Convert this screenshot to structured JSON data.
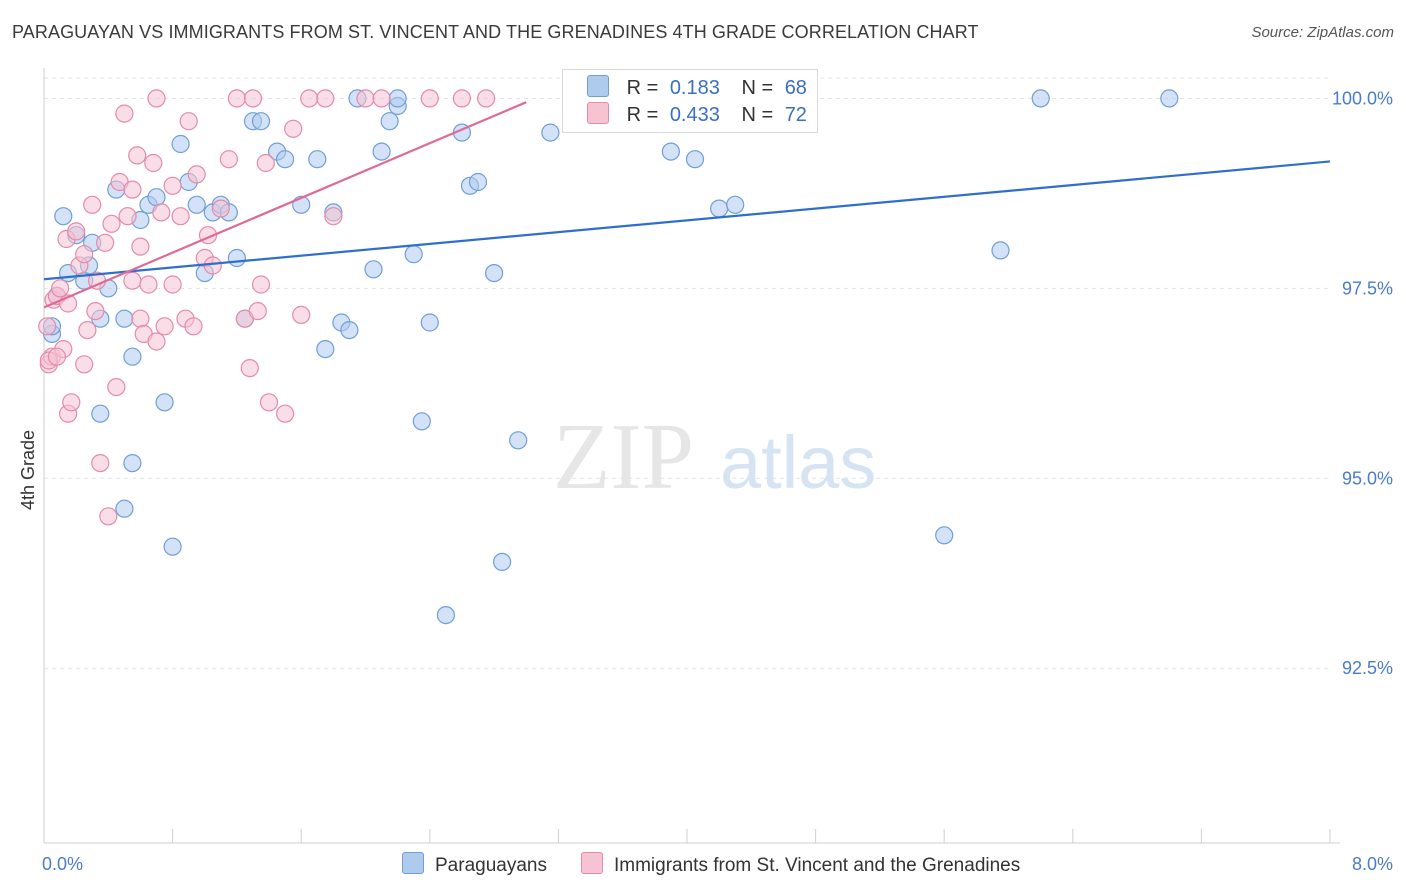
{
  "header": {
    "title": "PARAGUAYAN VS IMMIGRANTS FROM ST. VINCENT AND THE GRENADINES 4TH GRADE CORRELATION CHART",
    "source": "Source: ZipAtlas.com"
  },
  "watermark": {
    "zip": "ZIP",
    "atlas": "atlas"
  },
  "legend": {
    "rows": [
      {
        "r_label": "R =",
        "r_value": "0.183",
        "n_label": "N =",
        "n_value": "68"
      },
      {
        "r_label": "R =",
        "r_value": "0.433",
        "n_label": "N =",
        "n_value": "72"
      }
    ]
  },
  "bottom_legend": {
    "items": [
      {
        "label": "Paraguayans"
      },
      {
        "label": "Immigrants from St. Vincent and the Grenadines"
      }
    ]
  },
  "colors": {
    "blue_fill": "#aecbee",
    "blue_stroke": "#6f9fd8",
    "blue_line": "#2f6fcc",
    "pink_fill": "#f6c3d3",
    "pink_stroke": "#e58aaa",
    "pink_line": "#e06a96",
    "tick_text": "#4a7cc9",
    "grid": "#e3e3e3"
  },
  "chart_data": {
    "type": "scatter",
    "title": "PARAGUAYAN VS IMMIGRANTS FROM ST. VINCENT AND THE GRENADINES 4TH GRADE CORRELATION CHART",
    "xlabel": "",
    "ylabel": "4th Grade",
    "xlim": [
      0.0,
      8.0
    ],
    "ylim": [
      90.2,
      100.4
    ],
    "x_tick_labels": [
      "0.0%",
      "8.0%"
    ],
    "y_ticks": [
      92.5,
      95.0,
      97.5,
      100.0
    ],
    "y_tick_labels": [
      "92.5%",
      "95.0%",
      "97.5%",
      "100.0%"
    ],
    "grid": true,
    "legend_position": "top-center",
    "series": [
      {
        "name": "Paraguayans",
        "color": "#aecbee",
        "r": 0.183,
        "n": 68,
        "trend": {
          "x": [
            0.0,
            8.0
          ],
          "y": [
            97.62,
            99.17
          ]
        },
        "points": [
          [
            0.05,
            96.9
          ],
          [
            0.05,
            97.0
          ],
          [
            0.08,
            97.4
          ],
          [
            0.12,
            98.45
          ],
          [
            0.15,
            97.7
          ],
          [
            0.2,
            98.2
          ],
          [
            0.25,
            97.6
          ],
          [
            0.28,
            97.8
          ],
          [
            0.3,
            98.1
          ],
          [
            0.35,
            97.1
          ],
          [
            0.4,
            97.5
          ],
          [
            0.45,
            98.8
          ],
          [
            0.5,
            97.1
          ],
          [
            0.55,
            96.6
          ],
          [
            0.6,
            98.4
          ],
          [
            0.65,
            98.6
          ],
          [
            0.7,
            98.7
          ],
          [
            0.75,
            96.0
          ],
          [
            0.8,
            94.1
          ],
          [
            0.85,
            99.4
          ],
          [
            0.9,
            98.9
          ],
          [
            0.95,
            98.6
          ],
          [
            1.0,
            97.7
          ],
          [
            1.05,
            98.5
          ],
          [
            1.1,
            98.6
          ],
          [
            1.15,
            98.5
          ],
          [
            1.2,
            97.9
          ],
          [
            1.25,
            97.1
          ],
          [
            1.3,
            99.7
          ],
          [
            1.35,
            99.7
          ],
          [
            1.45,
            99.3
          ],
          [
            1.5,
            99.2
          ],
          [
            1.6,
            98.6
          ],
          [
            1.7,
            99.2
          ],
          [
            1.75,
            96.7
          ],
          [
            1.8,
            98.5
          ],
          [
            1.85,
            97.05
          ],
          [
            1.9,
            96.95
          ],
          [
            1.95,
            100.0
          ],
          [
            2.05,
            97.75
          ],
          [
            2.1,
            99.3
          ],
          [
            2.15,
            99.7
          ],
          [
            2.2,
            99.9
          ],
          [
            2.2,
            100.0
          ],
          [
            2.3,
            97.95
          ],
          [
            2.35,
            95.75
          ],
          [
            2.4,
            97.05
          ],
          [
            2.5,
            93.2
          ],
          [
            2.6,
            99.55
          ],
          [
            2.65,
            98.85
          ],
          [
            2.7,
            98.9
          ],
          [
            2.8,
            97.7
          ],
          [
            2.85,
            93.9
          ],
          [
            2.95,
            95.5
          ],
          [
            3.15,
            99.55
          ],
          [
            3.35,
            100.0
          ],
          [
            0.35,
            95.85
          ],
          [
            0.55,
            95.2
          ],
          [
            0.5,
            94.6
          ],
          [
            3.5,
            99.7
          ],
          [
            3.9,
            99.3
          ],
          [
            4.05,
            99.2
          ],
          [
            4.2,
            98.55
          ],
          [
            4.3,
            98.6
          ],
          [
            5.6,
            94.25
          ],
          [
            5.95,
            98.0
          ],
          [
            6.2,
            100.0
          ],
          [
            7.0,
            100.0
          ]
        ]
      },
      {
        "name": "Immigrants from St. Vincent and the Grenadines",
        "color": "#f6c3d3",
        "r": 0.433,
        "n": 72,
        "trend": {
          "x": [
            0.0,
            3.0
          ],
          "y": [
            97.25,
            99.95
          ]
        },
        "points": [
          [
            0.02,
            97.0
          ],
          [
            0.03,
            96.5
          ],
          [
            0.05,
            96.6
          ],
          [
            0.06,
            97.35
          ],
          [
            0.08,
            97.4
          ],
          [
            0.1,
            97.5
          ],
          [
            0.12,
            96.7
          ],
          [
            0.14,
            98.15
          ],
          [
            0.15,
            95.85
          ],
          [
            0.17,
            96.0
          ],
          [
            0.2,
            98.25
          ],
          [
            0.22,
            97.8
          ],
          [
            0.25,
            97.95
          ],
          [
            0.25,
            96.5
          ],
          [
            0.27,
            96.95
          ],
          [
            0.3,
            98.6
          ],
          [
            0.32,
            97.2
          ],
          [
            0.33,
            97.6
          ],
          [
            0.35,
            95.2
          ],
          [
            0.38,
            98.1
          ],
          [
            0.4,
            94.5
          ],
          [
            0.42,
            98.35
          ],
          [
            0.45,
            96.2
          ],
          [
            0.47,
            98.9
          ],
          [
            0.5,
            99.8
          ],
          [
            0.52,
            98.45
          ],
          [
            0.55,
            98.8
          ],
          [
            0.55,
            97.6
          ],
          [
            0.58,
            99.25
          ],
          [
            0.6,
            98.05
          ],
          [
            0.6,
            97.1
          ],
          [
            0.62,
            96.9
          ],
          [
            0.65,
            97.55
          ],
          [
            0.68,
            99.15
          ],
          [
            0.7,
            100.0
          ],
          [
            0.73,
            98.5
          ],
          [
            0.75,
            97.0
          ],
          [
            0.8,
            98.85
          ],
          [
            0.85,
            98.45
          ],
          [
            0.88,
            97.1
          ],
          [
            0.9,
            99.7
          ],
          [
            0.93,
            97.0
          ],
          [
            0.95,
            99.0
          ],
          [
            1.0,
            97.9
          ],
          [
            1.02,
            98.2
          ],
          [
            1.05,
            97.8
          ],
          [
            1.1,
            98.55
          ],
          [
            1.15,
            99.2
          ],
          [
            1.2,
            100.0
          ],
          [
            1.25,
            97.1
          ],
          [
            1.28,
            96.45
          ],
          [
            1.3,
            100.0
          ],
          [
            1.33,
            97.2
          ],
          [
            1.35,
            97.55
          ],
          [
            1.38,
            99.15
          ],
          [
            1.4,
            96.0
          ],
          [
            1.5,
            95.85
          ],
          [
            1.55,
            99.6
          ],
          [
            1.6,
            97.15
          ],
          [
            1.65,
            100.0
          ],
          [
            1.75,
            100.0
          ],
          [
            1.8,
            98.45
          ],
          [
            2.0,
            100.0
          ],
          [
            2.1,
            100.0
          ],
          [
            2.4,
            100.0
          ],
          [
            2.6,
            100.0
          ],
          [
            2.75,
            100.0
          ],
          [
            0.7,
            96.8
          ],
          [
            0.15,
            97.3
          ],
          [
            0.8,
            97.55
          ],
          [
            0.03,
            96.55
          ],
          [
            0.08,
            96.6
          ]
        ]
      }
    ]
  }
}
